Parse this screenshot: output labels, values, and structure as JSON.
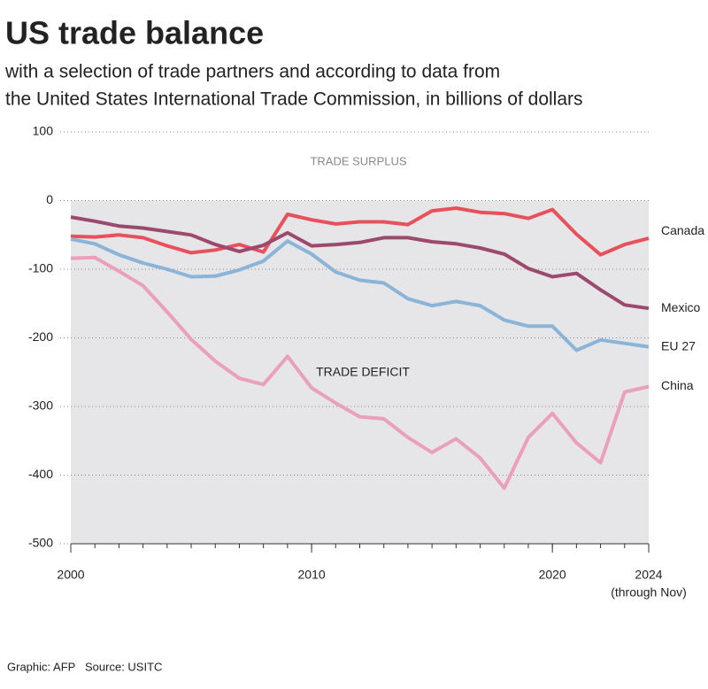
{
  "chart_data": {
    "type": "line",
    "title": "US trade balance",
    "subtitle": [
      "with a selection of trade partners and according to data from",
      "the United States International Trade Commission, in billions of dollars"
    ],
    "annotations": [
      "TRADE SURPLUS",
      "TRADE DEFICIT"
    ],
    "x_note": "(through Nov)",
    "credit": "Graphic: AFP",
    "source": "Source: USITC",
    "x": [
      2000,
      2001,
      2002,
      2003,
      2004,
      2005,
      2006,
      2007,
      2008,
      2009,
      2010,
      2011,
      2012,
      2013,
      2014,
      2015,
      2016,
      2017,
      2018,
      2019,
      2020,
      2021,
      2022,
      2023,
      2024
    ],
    "xlim": [
      2000,
      2024
    ],
    "xticks": [
      2000,
      2010,
      2020,
      2024
    ],
    "ylim": [
      -500,
      100
    ],
    "yticks": [
      -500,
      -400,
      -300,
      -200,
      -100,
      0,
      100
    ],
    "grid": true,
    "series": [
      {
        "name": "Canada",
        "color": "#e8505b",
        "values": [
          -52,
          -53,
          -50,
          -54,
          -66,
          -76,
          -72,
          -64,
          -75,
          -20,
          -28,
          -34,
          -31,
          -31,
          -35,
          -15,
          -11,
          -17,
          -19,
          -26,
          -13,
          -49,
          -79,
          -64,
          -55
        ]
      },
      {
        "name": "Mexico",
        "color": "#9b4a6e",
        "values": [
          -24,
          -30,
          -37,
          -40,
          -45,
          -50,
          -64,
          -74,
          -65,
          -47,
          -66,
          -64,
          -61,
          -54,
          -54,
          -60,
          -63,
          -69,
          -78,
          -99,
          -111,
          -106,
          -130,
          -152,
          -157
        ]
      },
      {
        "name": "EU 27",
        "color": "#8ab4d8",
        "values": [
          -56,
          -63,
          -79,
          -91,
          -100,
          -111,
          -110,
          -101,
          -88,
          -59,
          -78,
          -104,
          -116,
          -120,
          -143,
          -153,
          -147,
          -153,
          -174,
          -183,
          -183,
          -218,
          -203,
          -208,
          -213
        ]
      },
      {
        "name": "China",
        "color": "#e9a0b8",
        "values": [
          -84,
          -83,
          -103,
          -124,
          -162,
          -202,
          -234,
          -259,
          -268,
          -227,
          -273,
          -295,
          -315,
          -318,
          -345,
          -367,
          -347,
          -375,
          -419,
          -345,
          -310,
          -353,
          -382,
          -279,
          -271
        ]
      }
    ]
  }
}
